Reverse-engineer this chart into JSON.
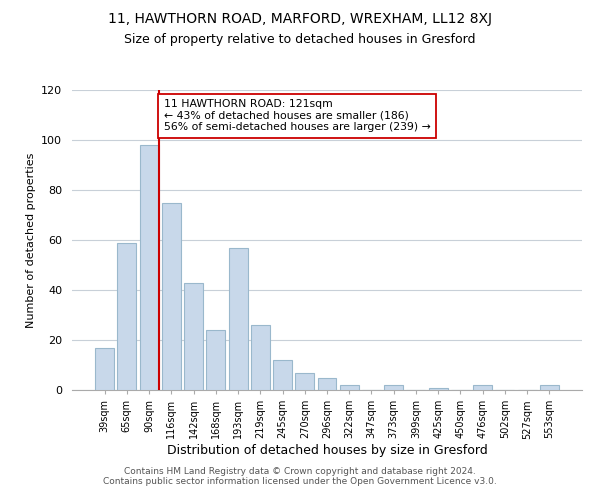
{
  "title1": "11, HAWTHORN ROAD, MARFORD, WREXHAM, LL12 8XJ",
  "title2": "Size of property relative to detached houses in Gresford",
  "xlabel": "Distribution of detached houses by size in Gresford",
  "ylabel": "Number of detached properties",
  "categories": [
    "39sqm",
    "65sqm",
    "90sqm",
    "116sqm",
    "142sqm",
    "168sqm",
    "193sqm",
    "219sqm",
    "245sqm",
    "270sqm",
    "296sqm",
    "322sqm",
    "347sqm",
    "373sqm",
    "399sqm",
    "425sqm",
    "450sqm",
    "476sqm",
    "502sqm",
    "527sqm",
    "553sqm"
  ],
  "values": [
    17,
    59,
    98,
    75,
    43,
    24,
    57,
    26,
    12,
    7,
    5,
    2,
    0,
    2,
    0,
    1,
    0,
    2,
    0,
    0,
    2
  ],
  "bar_color": "#c8d8ea",
  "bar_edge_color": "#9ab8cc",
  "vline_x_index": 3,
  "vline_color": "#cc0000",
  "annotation_text": "11 HAWTHORN ROAD: 121sqm\n← 43% of detached houses are smaller (186)\n56% of semi-detached houses are larger (239) →",
  "annotation_box_edge": "#cc0000",
  "ylim": [
    0,
    120
  ],
  "yticks": [
    0,
    20,
    40,
    60,
    80,
    100,
    120
  ],
  "footer1": "Contains HM Land Registry data © Crown copyright and database right 2024.",
  "footer2": "Contains public sector information licensed under the Open Government Licence v3.0.",
  "bg_color": "#ffffff",
  "grid_color": "#c8d0d8"
}
